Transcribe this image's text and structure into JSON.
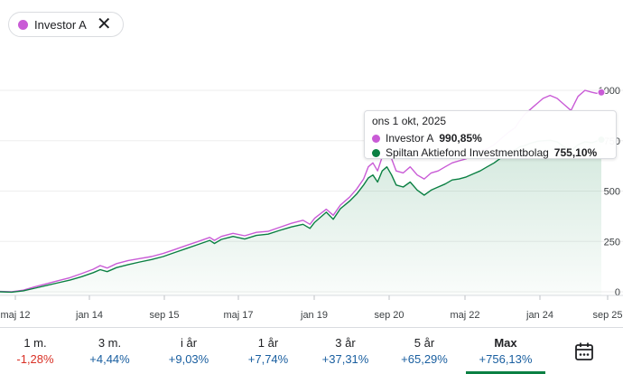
{
  "chip": {
    "label": "Investor A",
    "color": "#c95bd6",
    "close_icon": "close-icon"
  },
  "colors": {
    "investor": "#c95bd6",
    "spiltan": "#0b8043",
    "positive": "#1a5fa0",
    "negative": "#d93025"
  },
  "chart_data": {
    "type": "line",
    "x_ticks": [
      "maj 12",
      "jan 14",
      "sep 15",
      "maj 17",
      "jan 19",
      "sep 20",
      "maj 22",
      "jan 24",
      "sep 25"
    ],
    "y_ticks": [
      "0",
      "250",
      "500",
      "750",
      "1000"
    ],
    "ylim": [
      0,
      1000
    ],
    "series": [
      {
        "name": "Investor A",
        "values": [
          [
            0,
            2
          ],
          [
            0.5,
            0
          ],
          [
            1,
            8
          ],
          [
            1.5,
            25
          ],
          [
            2,
            40
          ],
          [
            2.5,
            55
          ],
          [
            3,
            70
          ],
          [
            3.5,
            90
          ],
          [
            4,
            112
          ],
          [
            4.3,
            130
          ],
          [
            4.6,
            118
          ],
          [
            5,
            140
          ],
          [
            5.5,
            155
          ],
          [
            6,
            165
          ],
          [
            6.5,
            175
          ],
          [
            7,
            190
          ],
          [
            7.5,
            210
          ],
          [
            8,
            230
          ],
          [
            8.5,
            250
          ],
          [
            9,
            270
          ],
          [
            9.2,
            255
          ],
          [
            9.5,
            275
          ],
          [
            10,
            290
          ],
          [
            10.5,
            278
          ],
          [
            11,
            295
          ],
          [
            11.5,
            300
          ],
          [
            12,
            320
          ],
          [
            12.5,
            340
          ],
          [
            13,
            355
          ],
          [
            13.3,
            335
          ],
          [
            13.5,
            365
          ],
          [
            14,
            410
          ],
          [
            14.3,
            380
          ],
          [
            14.6,
            430
          ],
          [
            15,
            470
          ],
          [
            15.3,
            510
          ],
          [
            15.6,
            560
          ],
          [
            15.8,
            620
          ],
          [
            16,
            640
          ],
          [
            16.2,
            600
          ],
          [
            16.4,
            670
          ],
          [
            16.6,
            700
          ],
          [
            16.8,
            660
          ],
          [
            17,
            600
          ],
          [
            17.3,
            590
          ],
          [
            17.6,
            620
          ],
          [
            17.9,
            580
          ],
          [
            18.2,
            560
          ],
          [
            18.5,
            590
          ],
          [
            18.8,
            600
          ],
          [
            19.1,
            620
          ],
          [
            19.4,
            640
          ],
          [
            19.7,
            650
          ],
          [
            20,
            660
          ],
          [
            20.3,
            690
          ],
          [
            20.6,
            700
          ],
          [
            20.9,
            710
          ],
          [
            21.2,
            730
          ],
          [
            21.5,
            760
          ],
          [
            21.8,
            790
          ],
          [
            22.1,
            815
          ],
          [
            22.3,
            850
          ],
          [
            22.5,
            880
          ],
          [
            22.7,
            900
          ],
          [
            22.9,
            920
          ],
          [
            23.1,
            940
          ],
          [
            23.3,
            960
          ],
          [
            23.6,
            975
          ],
          [
            23.9,
            960
          ],
          [
            24.2,
            930
          ],
          [
            24.5,
            900
          ],
          [
            24.8,
            970
          ],
          [
            25.1,
            1000
          ],
          [
            25.4,
            990
          ],
          [
            25.6,
            985
          ],
          [
            25.8,
            990
          ]
        ]
      },
      {
        "name": "Spiltan Aktiefond Investmentbolag",
        "values": [
          [
            0,
            0
          ],
          [
            0.5,
            -2
          ],
          [
            1,
            5
          ],
          [
            1.5,
            18
          ],
          [
            2,
            32
          ],
          [
            2.5,
            45
          ],
          [
            3,
            58
          ],
          [
            3.5,
            75
          ],
          [
            4,
            95
          ],
          [
            4.3,
            110
          ],
          [
            4.6,
            100
          ],
          [
            5,
            120
          ],
          [
            5.5,
            135
          ],
          [
            6,
            148
          ],
          [
            6.5,
            160
          ],
          [
            7,
            175
          ],
          [
            7.5,
            195
          ],
          [
            8,
            215
          ],
          [
            8.5,
            235
          ],
          [
            9,
            255
          ],
          [
            9.2,
            240
          ],
          [
            9.5,
            260
          ],
          [
            10,
            275
          ],
          [
            10.5,
            262
          ],
          [
            11,
            280
          ],
          [
            11.5,
            286
          ],
          [
            12,
            305
          ],
          [
            12.5,
            322
          ],
          [
            13,
            335
          ],
          [
            13.3,
            315
          ],
          [
            13.5,
            345
          ],
          [
            14,
            395
          ],
          [
            14.3,
            360
          ],
          [
            14.6,
            412
          ],
          [
            15,
            450
          ],
          [
            15.3,
            485
          ],
          [
            15.6,
            530
          ],
          [
            15.8,
            565
          ],
          [
            16,
            580
          ],
          [
            16.2,
            545
          ],
          [
            16.4,
            600
          ],
          [
            16.6,
            620
          ],
          [
            16.8,
            580
          ],
          [
            17,
            530
          ],
          [
            17.3,
            520
          ],
          [
            17.6,
            545
          ],
          [
            17.9,
            505
          ],
          [
            18.2,
            480
          ],
          [
            18.5,
            505
          ],
          [
            18.8,
            520
          ],
          [
            19.1,
            535
          ],
          [
            19.4,
            555
          ],
          [
            19.7,
            560
          ],
          [
            20,
            570
          ],
          [
            20.3,
            585
          ],
          [
            20.6,
            600
          ],
          [
            20.9,
            620
          ],
          [
            21.2,
            640
          ],
          [
            21.5,
            665
          ],
          [
            21.8,
            690
          ],
          [
            22.1,
            705
          ],
          [
            22.3,
            720
          ],
          [
            22.5,
            725
          ],
          [
            22.7,
            735
          ],
          [
            22.9,
            742
          ],
          [
            23.1,
            748
          ],
          [
            23.3,
            750
          ],
          [
            23.6,
            752
          ],
          [
            23.9,
            745
          ],
          [
            24.2,
            720
          ],
          [
            24.5,
            700
          ],
          [
            24.8,
            730
          ],
          [
            25.1,
            745
          ],
          [
            25.4,
            740
          ],
          [
            25.6,
            748
          ],
          [
            25.8,
            755
          ]
        ]
      }
    ]
  },
  "tooltip": {
    "date": "ons 1 okt, 2025",
    "rows": [
      {
        "name": "Investor A",
        "value": "990,85%"
      },
      {
        "name": "Spiltan Aktiefond Investmentbolag",
        "value": "755,10%"
      }
    ]
  },
  "periods": [
    {
      "label": "1 m.",
      "value": "-1,28%",
      "sign": "negative"
    },
    {
      "label": "3 m.",
      "value": "+4,44%",
      "sign": "positive"
    },
    {
      "label": "i år",
      "value": "+9,03%",
      "sign": "positive"
    },
    {
      "label": "1 år",
      "value": "+7,74%",
      "sign": "positive"
    },
    {
      "label": "3 år",
      "value": "+37,31%",
      "sign": "positive"
    },
    {
      "label": "5 år",
      "value": "+65,29%",
      "sign": "positive"
    },
    {
      "label": "Max",
      "value": "+756,13%",
      "sign": "positive",
      "active": true
    }
  ],
  "calendar_icon": "calendar-icon"
}
